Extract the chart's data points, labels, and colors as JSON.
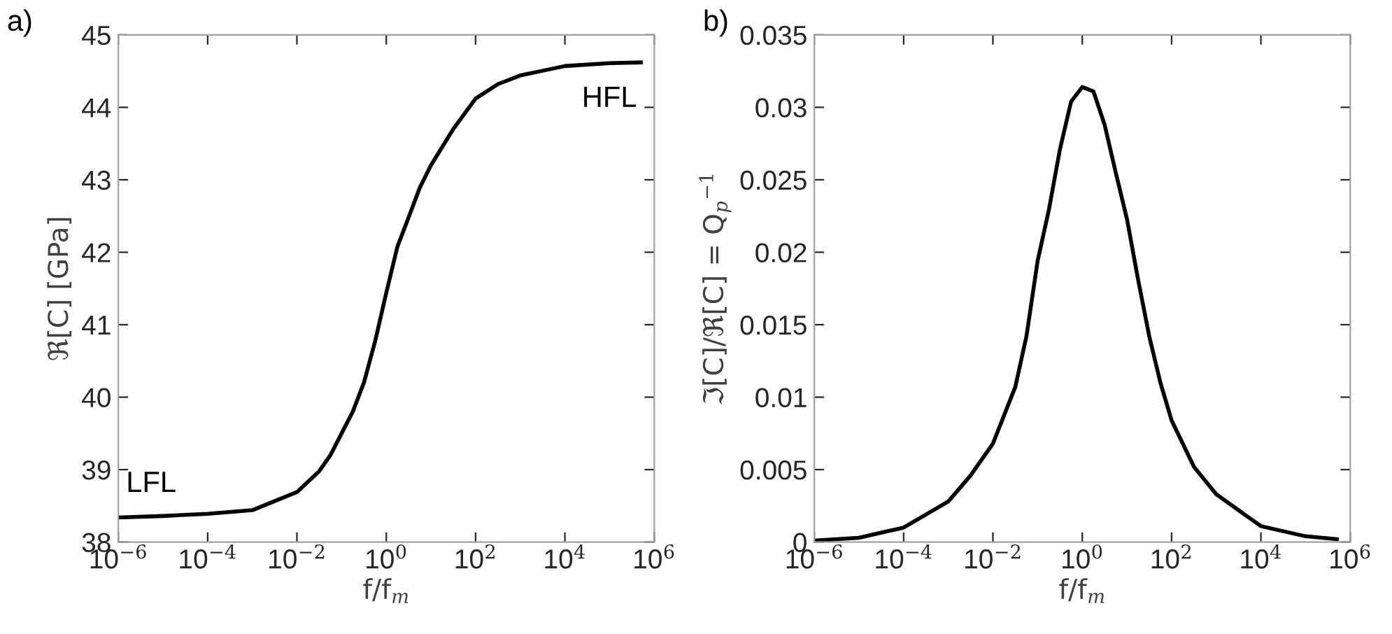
{
  "chart_data": [
    {
      "type": "line",
      "title": "a)",
      "xlabel": "f/f$_{m}$",
      "ylabel": "ℜ[C] [GPa]",
      "log": "x",
      "grid": false,
      "legend": false,
      "marker": "none",
      "line_style": "solid",
      "x": [
        1e-06,
        1e-05,
        0.0001,
        0.001,
        0.01,
        0.0316,
        0.0562,
        0.1,
        0.178,
        0.316,
        0.562,
        1,
        1.78,
        3.16,
        5.62,
        10,
        17.8,
        31.6,
        100,
        316,
        1000,
        10000,
        100000,
        500000
      ],
      "series": [
        {
          "color": "#000000",
          "values": [
            38.34,
            38.36,
            38.39,
            38.44,
            38.69,
            38.98,
            39.2,
            39.5,
            39.8,
            40.2,
            40.77,
            41.44,
            42.08,
            42.48,
            42.89,
            43.2,
            43.45,
            43.7,
            44.12,
            44.32,
            44.44,
            44.57,
            44.61,
            44.62
          ]
        }
      ],
      "xlim": [
        1e-06,
        1000000
      ],
      "ylim": [
        38,
        45
      ],
      "xticks": [
        {
          "value": 1e-06,
          "label": "10$^{−6}$"
        },
        {
          "value": 0.0001,
          "label": "10$^{−4}$"
        },
        {
          "value": 0.01,
          "label": "10$^{−2}$"
        },
        {
          "value": 1,
          "label": "10$^{0}$"
        },
        {
          "value": 100,
          "label": "10$^{2}$"
        },
        {
          "value": 10000,
          "label": "10$^{4}$"
        },
        {
          "value": 1000000,
          "label": "10$^{6}$"
        }
      ],
      "yticks": [
        38,
        39,
        40,
        41,
        42,
        43,
        44,
        45
      ],
      "annotations": [
        {
          "text": "LFL",
          "x": 1e-06,
          "y": 38.34
        },
        {
          "text": "HFL",
          "x": 500000,
          "y": 44.62
        }
      ]
    },
    {
      "type": "line",
      "title": "b)",
      "xlabel": "f/f$_{m}$",
      "ylabel": "ℑ[C]/ℜ[C] = Q$_{p}$$^{−1}$",
      "log": "x",
      "grid": false,
      "legend": false,
      "marker": "none",
      "line_style": "solid",
      "x": [
        1e-06,
        1e-05,
        0.0001,
        0.001,
        0.00316,
        0.01,
        0.0316,
        0.0562,
        0.1,
        0.178,
        0.316,
        0.562,
        1,
        1.78,
        3.16,
        5.62,
        10,
        17.8,
        31.6,
        56.2,
        100,
        316,
        1000,
        10000,
        100000,
        500000
      ],
      "series": [
        {
          "color": "#000000",
          "values": [
            0.0001,
            0.0003,
            0.001,
            0.0028,
            0.0046,
            0.0068,
            0.0107,
            0.0142,
            0.0194,
            0.0229,
            0.0271,
            0.0304,
            0.0314,
            0.0311,
            0.0288,
            0.0255,
            0.0223,
            0.0181,
            0.0142,
            0.011,
            0.0084,
            0.0052,
            0.0033,
            0.0011,
            0.0004,
            0.0002
          ]
        }
      ],
      "xlim": [
        1e-06,
        1000000
      ],
      "ylim": [
        0,
        0.035
      ],
      "xticks": [
        {
          "value": 1e-06,
          "label": "10$^{−6}$"
        },
        {
          "value": 0.0001,
          "label": "10$^{−4}$"
        },
        {
          "value": 0.01,
          "label": "10$^{−2}$"
        },
        {
          "value": 1,
          "label": "10$^{0}$"
        },
        {
          "value": 100,
          "label": "10$^{2}$"
        },
        {
          "value": 10000,
          "label": "10$^{4}$"
        },
        {
          "value": 1000000,
          "label": "10$^{6}$"
        }
      ],
      "yticks": [
        0,
        0.005,
        0.01,
        0.015,
        0.02,
        0.025,
        0.03,
        0.035
      ]
    }
  ]
}
